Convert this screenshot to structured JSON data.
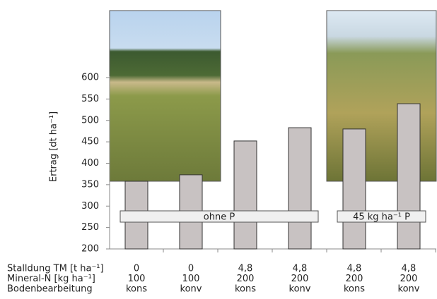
{
  "chart_data": {
    "type": "bar",
    "y_label": "Ertrag [dt ha⁻¹]",
    "values": [
      358,
      373,
      452,
      483,
      480,
      539
    ],
    "color": "#c8c2c2",
    "ylim": [
      200,
      600
    ],
    "yticks": [
      200,
      250,
      300,
      350,
      400,
      450,
      500,
      550,
      600
    ],
    "annotations": [
      "ohne P",
      "45 kg ha⁻¹ P"
    ],
    "table": [
      {
        "label": "Stalldung TM [t ha⁻¹]",
        "values": [
          "0",
          "0",
          "4,8",
          "4,8",
          "4,8",
          "4,8"
        ]
      },
      {
        "label": "Mineral-N [kg ha⁻¹]",
        "values": [
          "100",
          "100",
          "200",
          "200",
          "200",
          "200"
        ]
      },
      {
        "label": "Bodenbearbeitung",
        "values": [
          "kons",
          "konv",
          "kons",
          "konv",
          "kons",
          "konv"
        ]
      }
    ]
  }
}
